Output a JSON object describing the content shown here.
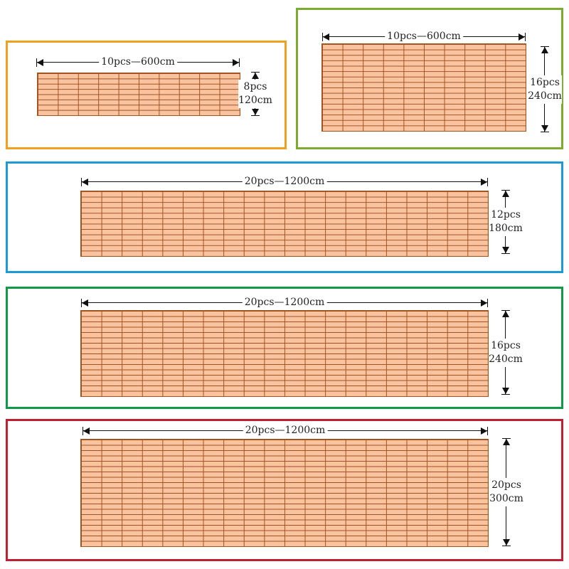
{
  "colors": {
    "tile_fill": "#f9c3a0",
    "tile_line": "#a2531e"
  },
  "panels": [
    {
      "id": "panel-1",
      "border_color": "#f0a11e",
      "cols": 10,
      "rows": 8,
      "width_label": "10pcs—600cm",
      "height_pcs": "8pcs",
      "height_cm": "120cm"
    },
    {
      "id": "panel-2",
      "border_color": "#7cab2f",
      "cols": 10,
      "rows": 16,
      "width_label": "10pcs—600cm",
      "height_pcs": "16pcs",
      "height_cm": "240cm"
    },
    {
      "id": "panel-3",
      "border_color": "#1d9bd7",
      "cols": 20,
      "rows": 12,
      "width_label": "20pcs—1200cm",
      "height_pcs": "12pcs",
      "height_cm": "180cm"
    },
    {
      "id": "panel-4",
      "border_color": "#109a45",
      "cols": 20,
      "rows": 16,
      "width_label": "20pcs—1200cm",
      "height_pcs": "16pcs",
      "height_cm": "240cm"
    },
    {
      "id": "panel-5",
      "border_color": "#c01f31",
      "cols": 20,
      "rows": 20,
      "width_label": "20pcs—1200cm",
      "height_pcs": "20pcs",
      "height_cm": "300cm"
    }
  ]
}
